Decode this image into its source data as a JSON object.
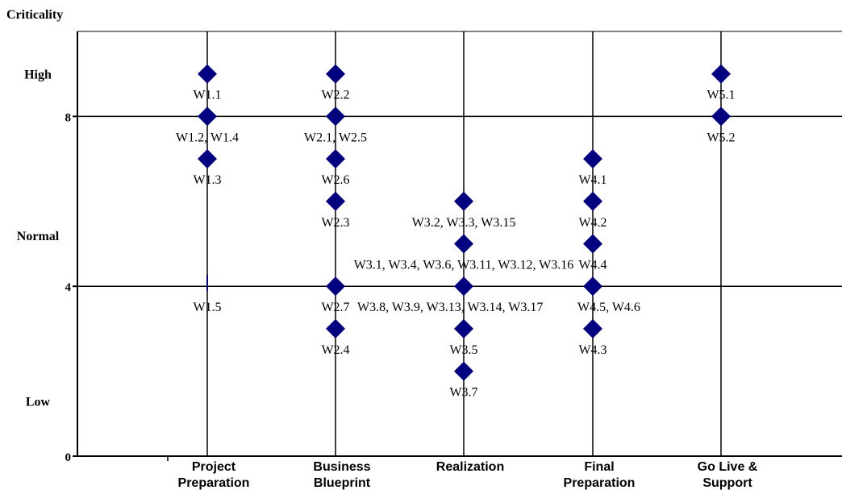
{
  "chart_data": {
    "type": "scatter",
    "title": "",
    "ylabel": "Criticality",
    "xlabel": "",
    "categories": [
      "Project\nPreparation",
      "Business\nBlueprint",
      "Realization",
      "Final\nPreparation",
      "Go Live &\nSupport"
    ],
    "ylim": [
      0,
      10
    ],
    "y_ticks": [
      {
        "value": 0,
        "label": "0"
      },
      {
        "value": 4,
        "label": "4"
      },
      {
        "value": 8,
        "label": "8"
      }
    ],
    "y_zone_labels": [
      {
        "value": 9,
        "label": "High"
      },
      {
        "value": 5.2,
        "label": "Normal"
      },
      {
        "value": 1.3,
        "label": "Low"
      }
    ],
    "grid": true,
    "points": [
      {
        "category": 0,
        "y": 9,
        "label": "W1.1"
      },
      {
        "category": 0,
        "y": 8,
        "label": "W1.2, W1.4"
      },
      {
        "category": 0,
        "y": 7,
        "label": "W1.3"
      },
      {
        "category": 0,
        "y": 4,
        "label": "W1.5",
        "marker": "tick"
      },
      {
        "category": 1,
        "y": 9,
        "label": "W2.2"
      },
      {
        "category": 1,
        "y": 8,
        "label": "W2.1, W2.5"
      },
      {
        "category": 1,
        "y": 7,
        "label": "W2.6"
      },
      {
        "category": 1,
        "y": 6,
        "label": "W2.3"
      },
      {
        "category": 1,
        "y": 4,
        "label": "W2.7"
      },
      {
        "category": 1,
        "y": 3,
        "label": "W2.4"
      },
      {
        "category": 2,
        "y": 6,
        "label": "W3.2, W3.3, W3.15"
      },
      {
        "category": 2,
        "y": 5,
        "label": "W3.1, W3.4, W3.6, W3.11, W3.12, W3.16"
      },
      {
        "category": 2,
        "y": 4,
        "label": "W3.8, W3.9, W3.13, W3.14, W3.17"
      },
      {
        "category": 2,
        "y": 3,
        "label": "W3.5"
      },
      {
        "category": 2,
        "y": 2,
        "label": "W3.7"
      },
      {
        "category": 3,
        "y": 7,
        "label": "W4.1"
      },
      {
        "category": 3,
        "y": 6,
        "label": "W4.2"
      },
      {
        "category": 3,
        "y": 5,
        "label": "W4.4"
      },
      {
        "category": 3,
        "y": 4,
        "label": "W4.5, W4.6"
      },
      {
        "category": 3,
        "y": 3,
        "label": "W4.3"
      },
      {
        "category": 4,
        "y": 9,
        "label": "W5.1"
      },
      {
        "category": 4,
        "y": 8,
        "label": "W5.2"
      }
    ],
    "marker_color": "#000080"
  }
}
